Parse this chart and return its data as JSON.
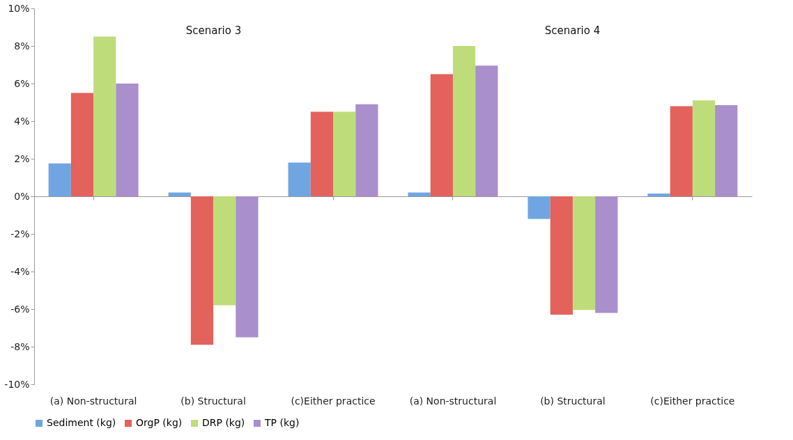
{
  "chart_data": {
    "type": "bar",
    "categories": [
      "(a) Non-structural",
      "(b) Structural",
      "(c)Either practice",
      "(a) Non-structural",
      "(b) Structural",
      "(c)Either practice"
    ],
    "series": [
      {
        "name": "Sediment (kg)",
        "color": "#6fa6e2",
        "values": [
          1.75,
          0.2,
          1.8,
          0.2,
          -1.2,
          0.15
        ]
      },
      {
        "name": "OrgP (kg)",
        "color": "#e3625b",
        "values": [
          5.5,
          -7.9,
          4.5,
          6.5,
          -6.3,
          4.8
        ]
      },
      {
        "name": "DRP (kg)",
        "color": "#bedd7a",
        "values": [
          8.5,
          -5.8,
          4.5,
          8.0,
          -6.05,
          5.1
        ]
      },
      {
        "name": "TP (kg)",
        "color": "#a98fcc",
        "values": [
          6.0,
          -7.5,
          4.9,
          6.95,
          -6.2,
          4.85
        ]
      }
    ],
    "ylim": [
      -10,
      10
    ],
    "yticks": [
      {
        "value": -10,
        "label": "-10%"
      },
      {
        "value": -8,
        "label": "-8%"
      },
      {
        "value": -6,
        "label": "-6%"
      },
      {
        "value": -4,
        "label": "-4%"
      },
      {
        "value": -2,
        "label": "-2%"
      },
      {
        "value": 0,
        "label": "0%"
      },
      {
        "value": 2,
        "label": "2%"
      },
      {
        "value": 4,
        "label": "4%"
      },
      {
        "value": 6,
        "label": "6%"
      },
      {
        "value": 8,
        "label": "8%"
      },
      {
        "value": 10,
        "label": "10%"
      }
    ],
    "annotations": [
      "Scenario 3",
      "Scenario 4"
    ],
    "legend": "bottom"
  }
}
